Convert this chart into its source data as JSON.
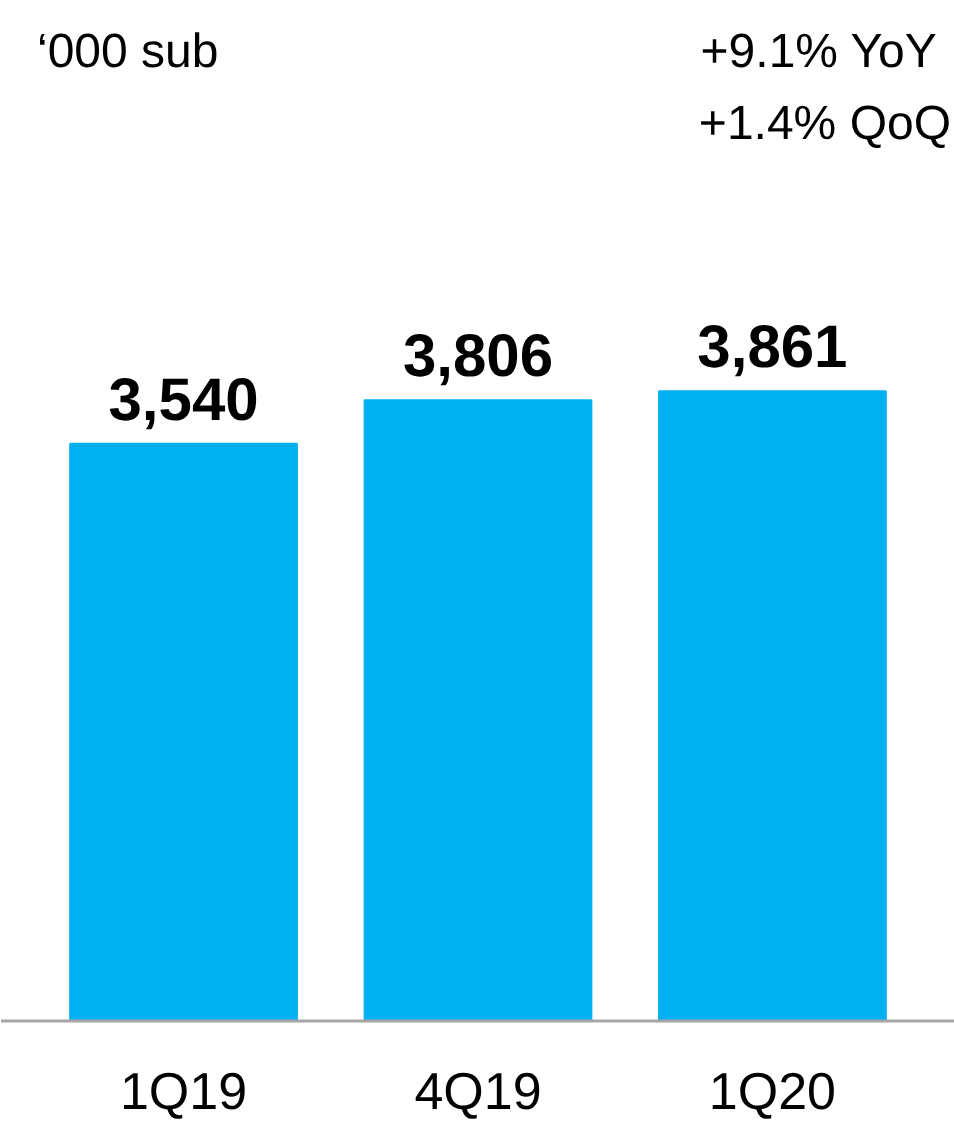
{
  "chart_data": {
    "type": "bar",
    "annotations": [
      "‘000 sub",
      "+9.1%  YoY",
      "+1.4% QoQ"
    ],
    "categories": [
      "1Q19",
      "4Q19",
      "1Q20"
    ],
    "values": [
      3540,
      3806,
      3861
    ],
    "color": "#00b0f0",
    "data_labels": true,
    "value_labels": [
      "3,540",
      "3,806",
      "3,861"
    ]
  }
}
